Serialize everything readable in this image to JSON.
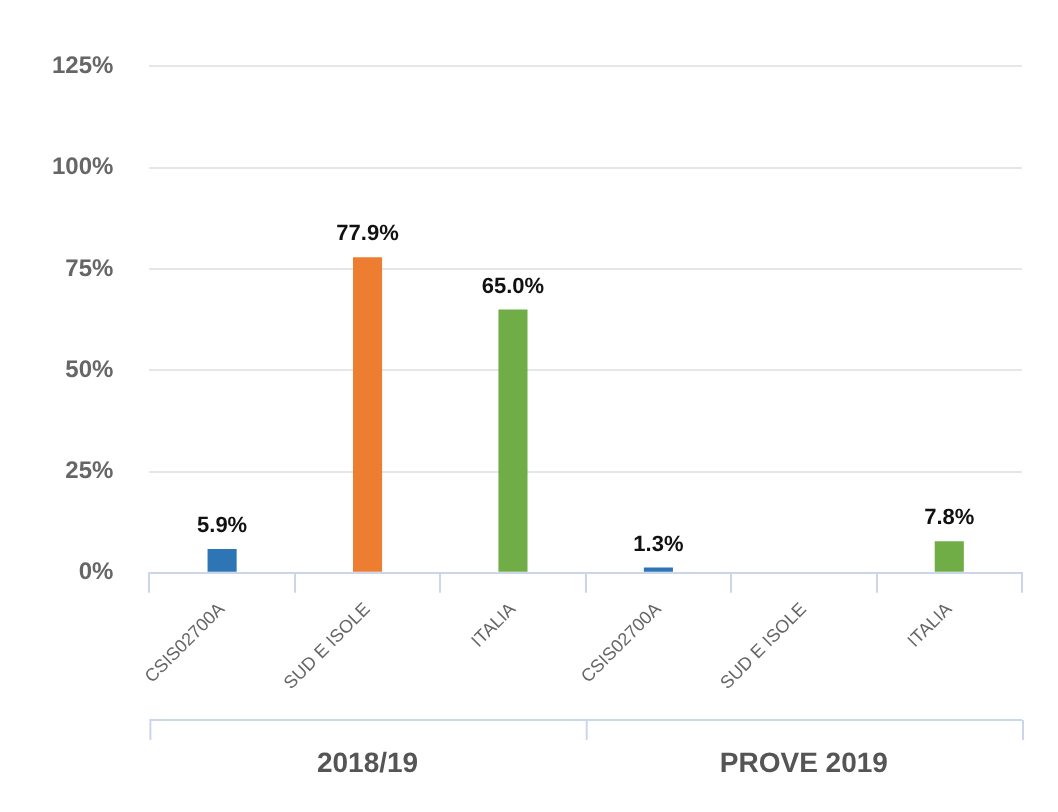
{
  "chart_data": {
    "type": "bar",
    "categories": [
      "CSIS02700A",
      "SUD E ISOLE",
      "ITALIA",
      "CSIS02700A",
      "SUD E ISOLE",
      "ITALIA"
    ],
    "values": [
      5.9,
      77.9,
      65.0,
      1.3,
      null,
      7.8
    ],
    "colors": [
      "#2e75b6",
      "#ed7d31",
      "#70ad47",
      "#2e75b6",
      "#ed7d31",
      "#70ad47"
    ],
    "value_labels": [
      "5.9%",
      "77.9%",
      "65.0%",
      "1.3%",
      null,
      "7.8%"
    ],
    "ylim": [
      0,
      125
    ],
    "yticks": [
      {
        "value": 0,
        "label": "0%"
      },
      {
        "value": 25,
        "label": "25%"
      },
      {
        "value": 50,
        "label": "50%"
      },
      {
        "value": 75,
        "label": "75%"
      },
      {
        "value": 100,
        "label": "100%"
      },
      {
        "value": 125,
        "label": "125%"
      }
    ],
    "annotations": [
      "2018/19",
      "PROVE 2019"
    ],
    "grid": "y",
    "legend": false
  }
}
